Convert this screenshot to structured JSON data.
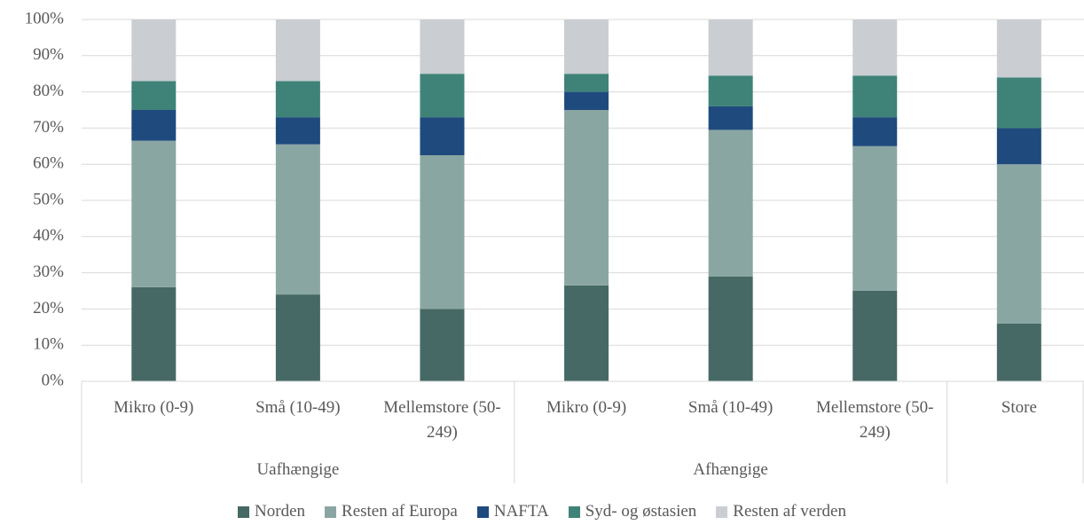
{
  "chart_data": {
    "type": "stacked_bar",
    "groups": [
      {
        "name": "Uafhængige",
        "categories": [
          "Mikro (0-9)",
          "Små (10-49)",
          "Mellemstore (50-249)"
        ]
      },
      {
        "name": "Afhængige",
        "categories": [
          "Mikro (0-9)",
          "Små (10-49)",
          "Mellemstore (50-249)"
        ]
      },
      {
        "name": null,
        "categories": [
          "Store"
        ]
      }
    ],
    "series": [
      {
        "name": "Norden",
        "color": "#466965",
        "values": [
          26,
          24,
          20,
          26.5,
          29,
          25,
          16
        ]
      },
      {
        "name": "Resten af Europa",
        "color": "#8aa6a3",
        "values": [
          40.5,
          41.5,
          42.5,
          48.5,
          40.5,
          40,
          44
        ]
      },
      {
        "name": "NAFTA",
        "color": "#1f4a7e",
        "values": [
          8.5,
          7.5,
          10.5,
          5,
          6.5,
          8,
          10
        ]
      },
      {
        "name": "Syd- og østasien",
        "color": "#3f8378",
        "values": [
          8,
          10,
          12,
          5,
          8.5,
          11.5,
          14
        ]
      },
      {
        "name": "Resten af verden",
        "color": "#cacdd1",
        "values": [
          17,
          17,
          15,
          15,
          15.5,
          15.5,
          16
        ]
      }
    ],
    "ylim": [
      0,
      100
    ],
    "yticks": [
      {
        "value": 0,
        "label": "0%"
      },
      {
        "value": 10,
        "label": "10%"
      },
      {
        "value": 20,
        "label": "20%"
      },
      {
        "value": 30,
        "label": "30%"
      },
      {
        "value": 40,
        "label": "40%"
      },
      {
        "value": 50,
        "label": "50%"
      },
      {
        "value": 60,
        "label": "60%"
      },
      {
        "value": 70,
        "label": "70%"
      },
      {
        "value": 80,
        "label": "80%"
      },
      {
        "value": 90,
        "label": "90%"
      },
      {
        "value": 100,
        "label": "100%"
      }
    ],
    "grid": true,
    "legend": "bottom"
  }
}
